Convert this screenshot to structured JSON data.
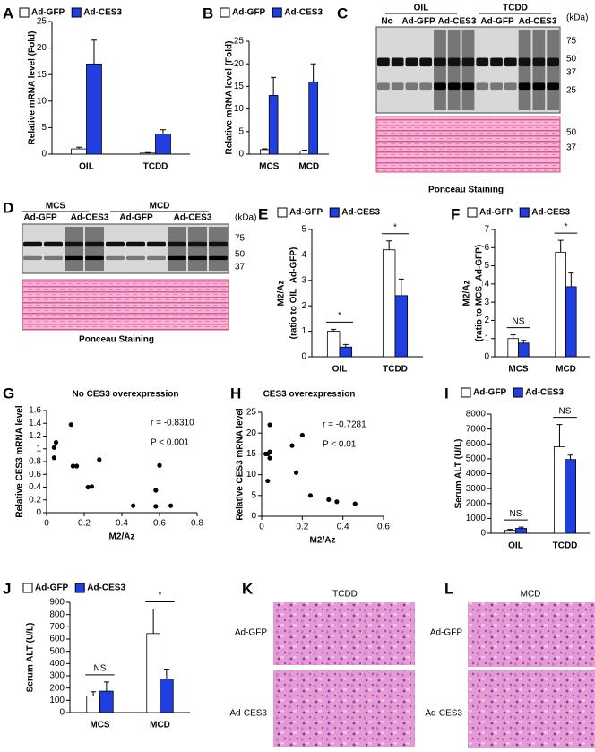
{
  "chart_data": [
    {
      "type": "bar",
      "panel": "A",
      "ylabel": [
        "Relative mRNA level (Fold)"
      ],
      "categories": [
        "OIL",
        "TCDD"
      ],
      "series": [
        {
          "name": "Ad-GFP",
          "color": "#ffffff",
          "values": [
            1.0,
            0.2
          ],
          "errors": [
            0.3,
            0.1
          ]
        },
        {
          "name": "Ad-CES3",
          "color": "#1f3fe0",
          "values": [
            17,
            3.8
          ],
          "errors": [
            4.5,
            0.8
          ]
        }
      ],
      "ylim": [
        0,
        25
      ],
      "yticks": [
        0,
        5,
        10,
        15,
        20,
        25
      ]
    },
    {
      "type": "bar",
      "panel": "B",
      "ylabel": [
        "Relative mRNA level (Fold)"
      ],
      "categories": [
        "MCS",
        "MCD"
      ],
      "series": [
        {
          "name": "Ad-GFP",
          "color": "#ffffff",
          "values": [
            1.0,
            0.7
          ],
          "errors": [
            0.2,
            0.2
          ]
        },
        {
          "name": "Ad-CES3",
          "color": "#1f3fe0",
          "values": [
            13,
            16
          ],
          "errors": [
            4,
            4
          ]
        }
      ],
      "ylim": [
        0,
        25
      ],
      "yticks": [
        0,
        5,
        10,
        15,
        20,
        25
      ]
    },
    {
      "type": "bar",
      "panel": "E",
      "ylabel": [
        "M2/Az",
        "(ratio to OIL_Ad-GFP)"
      ],
      "categories": [
        "OIL",
        "TCDD"
      ],
      "series": [
        {
          "name": "Ad-GFP",
          "color": "#ffffff",
          "values": [
            1.0,
            4.2
          ],
          "errors": [
            0.08,
            0.35
          ]
        },
        {
          "name": "Ad-CES3",
          "color": "#1f3fe0",
          "values": [
            0.38,
            2.4
          ],
          "errors": [
            0.1,
            0.65
          ]
        }
      ],
      "significance": [
        "*",
        "*"
      ],
      "ylim": [
        0,
        5
      ],
      "yticks": [
        0,
        1,
        2,
        3,
        4,
        5
      ]
    },
    {
      "type": "bar",
      "panel": "F",
      "ylabel": [
        "M2/Az",
        "(ratio to MCS_Ad-GFP)"
      ],
      "categories": [
        "MCS",
        "MCD"
      ],
      "series": [
        {
          "name": "Ad-GFP",
          "color": "#ffffff",
          "values": [
            1.0,
            5.75
          ],
          "errors": [
            0.2,
            0.65
          ]
        },
        {
          "name": "Ad-CES3",
          "color": "#1f3fe0",
          "values": [
            0.75,
            3.85
          ],
          "errors": [
            0.15,
            0.75
          ]
        }
      ],
      "significance": [
        "NS",
        "*"
      ],
      "ylim": [
        0,
        7
      ],
      "yticks": [
        0,
        1,
        2,
        3,
        4,
        5,
        6,
        7
      ]
    },
    {
      "type": "scatter",
      "panel": "G",
      "title": "No CES3 overexpression",
      "ylabel": [
        "Relative CES3 mRNA level"
      ],
      "xlabel": "M2/Az",
      "x": [
        0.04,
        0.05,
        0.04,
        0.13,
        0.14,
        0.16,
        0.22,
        0.24,
        0.28,
        0.46,
        0.58,
        0.58,
        0.6,
        0.66
      ],
      "values": [
        1.02,
        1.1,
        0.86,
        1.38,
        0.73,
        0.73,
        0.4,
        0.41,
        0.83,
        0.11,
        0.35,
        0.1,
        0.74,
        0.11
      ],
      "annotations": [
        "r = -0.8310",
        "P < 0.001"
      ],
      "xlim": [
        0,
        0.8
      ],
      "xticks": [
        0,
        0.2,
        0.4,
        0.6,
        0.8
      ],
      "ylim": [
        0,
        1.6
      ],
      "yticks": [
        0,
        0.2,
        0.4,
        0.6,
        0.8,
        1,
        1.2,
        1.4,
        1.6
      ]
    },
    {
      "type": "scatter",
      "panel": "H",
      "title": "CES3 overexpression",
      "ylabel": [
        "Relative CES3 mRNA level"
      ],
      "xlabel": "M2/Az",
      "x": [
        0.02,
        0.03,
        0.03,
        0.04,
        0.04,
        0.04,
        0.15,
        0.17,
        0.2,
        0.24,
        0.33,
        0.37,
        0.46
      ],
      "values": [
        15,
        15,
        8.5,
        14,
        15.5,
        22,
        17,
        10.5,
        19.5,
        5,
        4,
        3.5,
        3
      ],
      "annotations": [
        "r = -0.7281",
        "P < 0.01"
      ],
      "xlim": [
        0,
        0.6
      ],
      "xticks": [
        0,
        0.2,
        0.4,
        0.6
      ],
      "ylim": [
        0,
        25
      ],
      "yticks": [
        0,
        5,
        10,
        15,
        20,
        25
      ]
    },
    {
      "type": "bar",
      "panel": "I",
      "ylabel": [
        "Serum ALT (U/L)"
      ],
      "categories": [
        "OIL",
        "TCDD"
      ],
      "series": [
        {
          "name": "Ad-GFP",
          "color": "#ffffff",
          "values": [
            200,
            5800
          ],
          "errors": [
            60,
            1500
          ]
        },
        {
          "name": "Ad-CES3",
          "color": "#1f3fe0",
          "values": [
            330,
            4950
          ],
          "errors": [
            80,
            300
          ]
        }
      ],
      "significance": [
        "NS",
        "NS"
      ],
      "ylim": [
        0,
        8000
      ],
      "yticks": [
        0,
        1000,
        2000,
        3000,
        4000,
        5000,
        6000,
        7000,
        8000
      ]
    },
    {
      "type": "bar",
      "panel": "J",
      "ylabel": [
        "Serum ALT (U/L)"
      ],
      "categories": [
        "MCS",
        "MCD"
      ],
      "series": [
        {
          "name": "Ad-GFP",
          "color": "#ffffff",
          "values": [
            135,
            645
          ],
          "errors": [
            35,
            200
          ]
        },
        {
          "name": "Ad-CES3",
          "color": "#1f3fe0",
          "values": [
            175,
            275
          ],
          "errors": [
            75,
            80
          ]
        }
      ],
      "significance": [
        "NS",
        "*"
      ],
      "ylim": [
        0,
        900
      ],
      "yticks": [
        0,
        100,
        200,
        300,
        400,
        500,
        600,
        700,
        800,
        900
      ]
    }
  ],
  "blots": [
    {
      "panel": "C",
      "groups": [
        "OIL",
        "TCDD"
      ],
      "lanes": [
        "No",
        "Ad-GFP",
        "Ad-CES3",
        "Ad-GFP",
        "Ad-CES3"
      ],
      "unit": "(kDa)",
      "markers": [
        75,
        50,
        37,
        25
      ],
      "ponceau_markers": [
        50,
        37
      ],
      "caption": "Ponceau Staining"
    },
    {
      "panel": "D",
      "groups": [
        "MCS",
        "MCD"
      ],
      "lanes": [
        "Ad-GFP",
        "Ad-CES3",
        "Ad-GFP",
        "Ad-CES3"
      ],
      "unit": "(kDa)",
      "markers": [
        75,
        50,
        37
      ],
      "caption": "Ponceau Staining"
    }
  ],
  "histology": [
    {
      "panel": "K",
      "title": "TCDD",
      "rows": [
        "Ad-GFP",
        "Ad-CES3"
      ]
    },
    {
      "panel": "L",
      "title": "MCD",
      "rows": [
        "Ad-GFP",
        "Ad-CES3"
      ]
    }
  ]
}
